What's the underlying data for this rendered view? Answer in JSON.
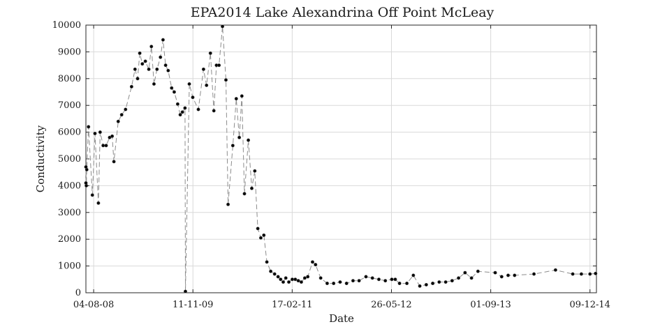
{
  "chart_data": {
    "type": "line",
    "title": "EPA2014 Lake Alexandrina Off Point McLeay",
    "xlabel": "Date",
    "ylabel": "Conductivity",
    "x_ticks": [
      "04-08-08",
      "11-11-09",
      "17-02-11",
      "26-05-12",
      "01-09-13",
      "09-12-14"
    ],
    "xlim": [
      0,
      2370
    ],
    "ylim": [
      0,
      10000
    ],
    "y_ticks": [
      0,
      1000,
      2000,
      3000,
      4000,
      5000,
      6000,
      7000,
      8000,
      9000,
      10000
    ],
    "grid": true,
    "series": [
      {
        "color": "#000000",
        "line_color": "#8c8c8c",
        "marker": "circle",
        "points": [
          {
            "x": 0,
            "y": 4100
          },
          {
            "x": 0,
            "y": 4700
          },
          {
            "x": 2,
            "y": 4000
          },
          {
            "x": 4,
            "y": 4600
          },
          {
            "x": 12,
            "y": 6200
          },
          {
            "x": 30,
            "y": 3650
          },
          {
            "x": 42,
            "y": 5950
          },
          {
            "x": 58,
            "y": 3350
          },
          {
            "x": 66,
            "y": 6000
          },
          {
            "x": 80,
            "y": 5500
          },
          {
            "x": 94,
            "y": 5500
          },
          {
            "x": 110,
            "y": 5800
          },
          {
            "x": 122,
            "y": 5850
          },
          {
            "x": 130,
            "y": 4900
          },
          {
            "x": 150,
            "y": 6400
          },
          {
            "x": 166,
            "y": 6650
          },
          {
            "x": 184,
            "y": 6850
          },
          {
            "x": 212,
            "y": 7700
          },
          {
            "x": 228,
            "y": 8350
          },
          {
            "x": 240,
            "y": 8000
          },
          {
            "x": 250,
            "y": 8950
          },
          {
            "x": 262,
            "y": 8550
          },
          {
            "x": 276,
            "y": 8650
          },
          {
            "x": 292,
            "y": 8350
          },
          {
            "x": 304,
            "y": 9200
          },
          {
            "x": 316,
            "y": 7800
          },
          {
            "x": 330,
            "y": 8350
          },
          {
            "x": 346,
            "y": 8800
          },
          {
            "x": 358,
            "y": 9450
          },
          {
            "x": 370,
            "y": 8500
          },
          {
            "x": 382,
            "y": 8300
          },
          {
            "x": 398,
            "y": 7650
          },
          {
            "x": 410,
            "y": 7500
          },
          {
            "x": 426,
            "y": 7050
          },
          {
            "x": 438,
            "y": 6650
          },
          {
            "x": 448,
            "y": 6750
          },
          {
            "x": 460,
            "y": 6900
          },
          {
            "x": 462,
            "y": 50
          },
          {
            "x": 480,
            "y": 7800
          },
          {
            "x": 496,
            "y": 7300
          },
          {
            "x": 522,
            "y": 6850
          },
          {
            "x": 546,
            "y": 8350
          },
          {
            "x": 560,
            "y": 7750
          },
          {
            "x": 578,
            "y": 8950
          },
          {
            "x": 594,
            "y": 6800
          },
          {
            "x": 606,
            "y": 8500
          },
          {
            "x": 618,
            "y": 8500
          },
          {
            "x": 634,
            "y": 9950
          },
          {
            "x": 650,
            "y": 7950
          },
          {
            "x": 660,
            "y": 3300
          },
          {
            "x": 682,
            "y": 5500
          },
          {
            "x": 698,
            "y": 7250
          },
          {
            "x": 712,
            "y": 5800
          },
          {
            "x": 724,
            "y": 7350
          },
          {
            "x": 736,
            "y": 3700
          },
          {
            "x": 754,
            "y": 5700
          },
          {
            "x": 770,
            "y": 3900
          },
          {
            "x": 784,
            "y": 4550
          },
          {
            "x": 798,
            "y": 2400
          },
          {
            "x": 812,
            "y": 2050
          },
          {
            "x": 826,
            "y": 2150
          },
          {
            "x": 840,
            "y": 1150
          },
          {
            "x": 858,
            "y": 800
          },
          {
            "x": 876,
            "y": 700
          },
          {
            "x": 892,
            "y": 600
          },
          {
            "x": 904,
            "y": 500
          },
          {
            "x": 916,
            "y": 400
          },
          {
            "x": 928,
            "y": 550
          },
          {
            "x": 942,
            "y": 400
          },
          {
            "x": 958,
            "y": 500
          },
          {
            "x": 972,
            "y": 500
          },
          {
            "x": 986,
            "y": 450
          },
          {
            "x": 1000,
            "y": 400
          },
          {
            "x": 1016,
            "y": 550
          },
          {
            "x": 1030,
            "y": 600
          },
          {
            "x": 1052,
            "y": 1150
          },
          {
            "x": 1066,
            "y": 1050
          },
          {
            "x": 1090,
            "y": 550
          },
          {
            "x": 1120,
            "y": 350
          },
          {
            "x": 1150,
            "y": 350
          },
          {
            "x": 1180,
            "y": 400
          },
          {
            "x": 1210,
            "y": 350
          },
          {
            "x": 1240,
            "y": 450
          },
          {
            "x": 1268,
            "y": 450
          },
          {
            "x": 1300,
            "y": 600
          },
          {
            "x": 1330,
            "y": 550
          },
          {
            "x": 1360,
            "y": 500
          },
          {
            "x": 1390,
            "y": 450
          },
          {
            "x": 1420,
            "y": 500
          },
          {
            "x": 1436,
            "y": 500
          },
          {
            "x": 1456,
            "y": 350
          },
          {
            "x": 1490,
            "y": 350
          },
          {
            "x": 1520,
            "y": 650
          },
          {
            "x": 1550,
            "y": 250
          },
          {
            "x": 1580,
            "y": 300
          },
          {
            "x": 1610,
            "y": 350
          },
          {
            "x": 1640,
            "y": 400
          },
          {
            "x": 1670,
            "y": 400
          },
          {
            "x": 1700,
            "y": 450
          },
          {
            "x": 1730,
            "y": 550
          },
          {
            "x": 1760,
            "y": 750
          },
          {
            "x": 1790,
            "y": 550
          },
          {
            "x": 1820,
            "y": 800
          },
          {
            "x": 1900,
            "y": 750
          },
          {
            "x": 1930,
            "y": 600
          },
          {
            "x": 1960,
            "y": 650
          },
          {
            "x": 1990,
            "y": 650
          },
          {
            "x": 2080,
            "y": 700
          },
          {
            "x": 2180,
            "y": 850
          },
          {
            "x": 2260,
            "y": 700
          },
          {
            "x": 2300,
            "y": 700
          },
          {
            "x": 2340,
            "y": 700
          },
          {
            "x": 2366,
            "y": 720
          }
        ]
      }
    ]
  }
}
